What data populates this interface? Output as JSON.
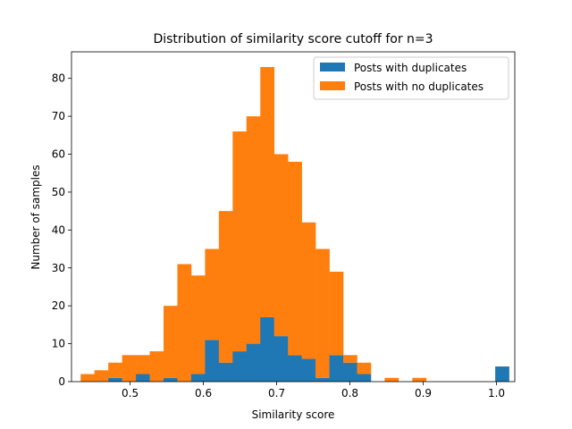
{
  "chart_data": {
    "type": "histogram",
    "title": "Distribution of similarity score cutoff for n=3",
    "xlabel": "Similarity score",
    "ylabel": "Number of samples",
    "xlim": [
      0.42,
      1.025
    ],
    "ylim": [
      0,
      87
    ],
    "xticks": [
      0.5,
      0.6,
      0.7,
      0.8,
      0.9,
      1.0
    ],
    "xtick_labels": [
      "0.5",
      "0.6",
      "0.7",
      "0.8",
      "0.9",
      "1.0"
    ],
    "yticks": [
      0,
      10,
      20,
      30,
      40,
      50,
      60,
      70,
      80
    ],
    "ytick_labels": [
      "0",
      "10",
      "20",
      "30",
      "40",
      "50",
      "60",
      "70",
      "80"
    ],
    "bins_start": 0.4325,
    "bin_width": 0.01886,
    "stacked": true,
    "grid": false,
    "legend_position": "top-right",
    "series": [
      {
        "name": "Posts with duplicates",
        "color": "#1f77b4",
        "values": [
          0,
          0,
          1,
          0,
          2,
          0,
          1,
          0,
          2,
          11,
          5,
          8,
          10,
          17,
          12,
          7,
          6,
          1,
          7,
          5,
          2,
          0,
          0,
          0,
          0,
          0,
          0,
          0,
          0,
          0,
          4
        ]
      },
      {
        "name": "Posts with no duplicates",
        "color": "#ff7f0e",
        "values": [
          2,
          3,
          4,
          7,
          5,
          8,
          19,
          31,
          26,
          24,
          40,
          58,
          60,
          66,
          48,
          51,
          36,
          34,
          22,
          2,
          3,
          0,
          1,
          0,
          1,
          0,
          0,
          0,
          0,
          0,
          0
        ]
      }
    ]
  }
}
